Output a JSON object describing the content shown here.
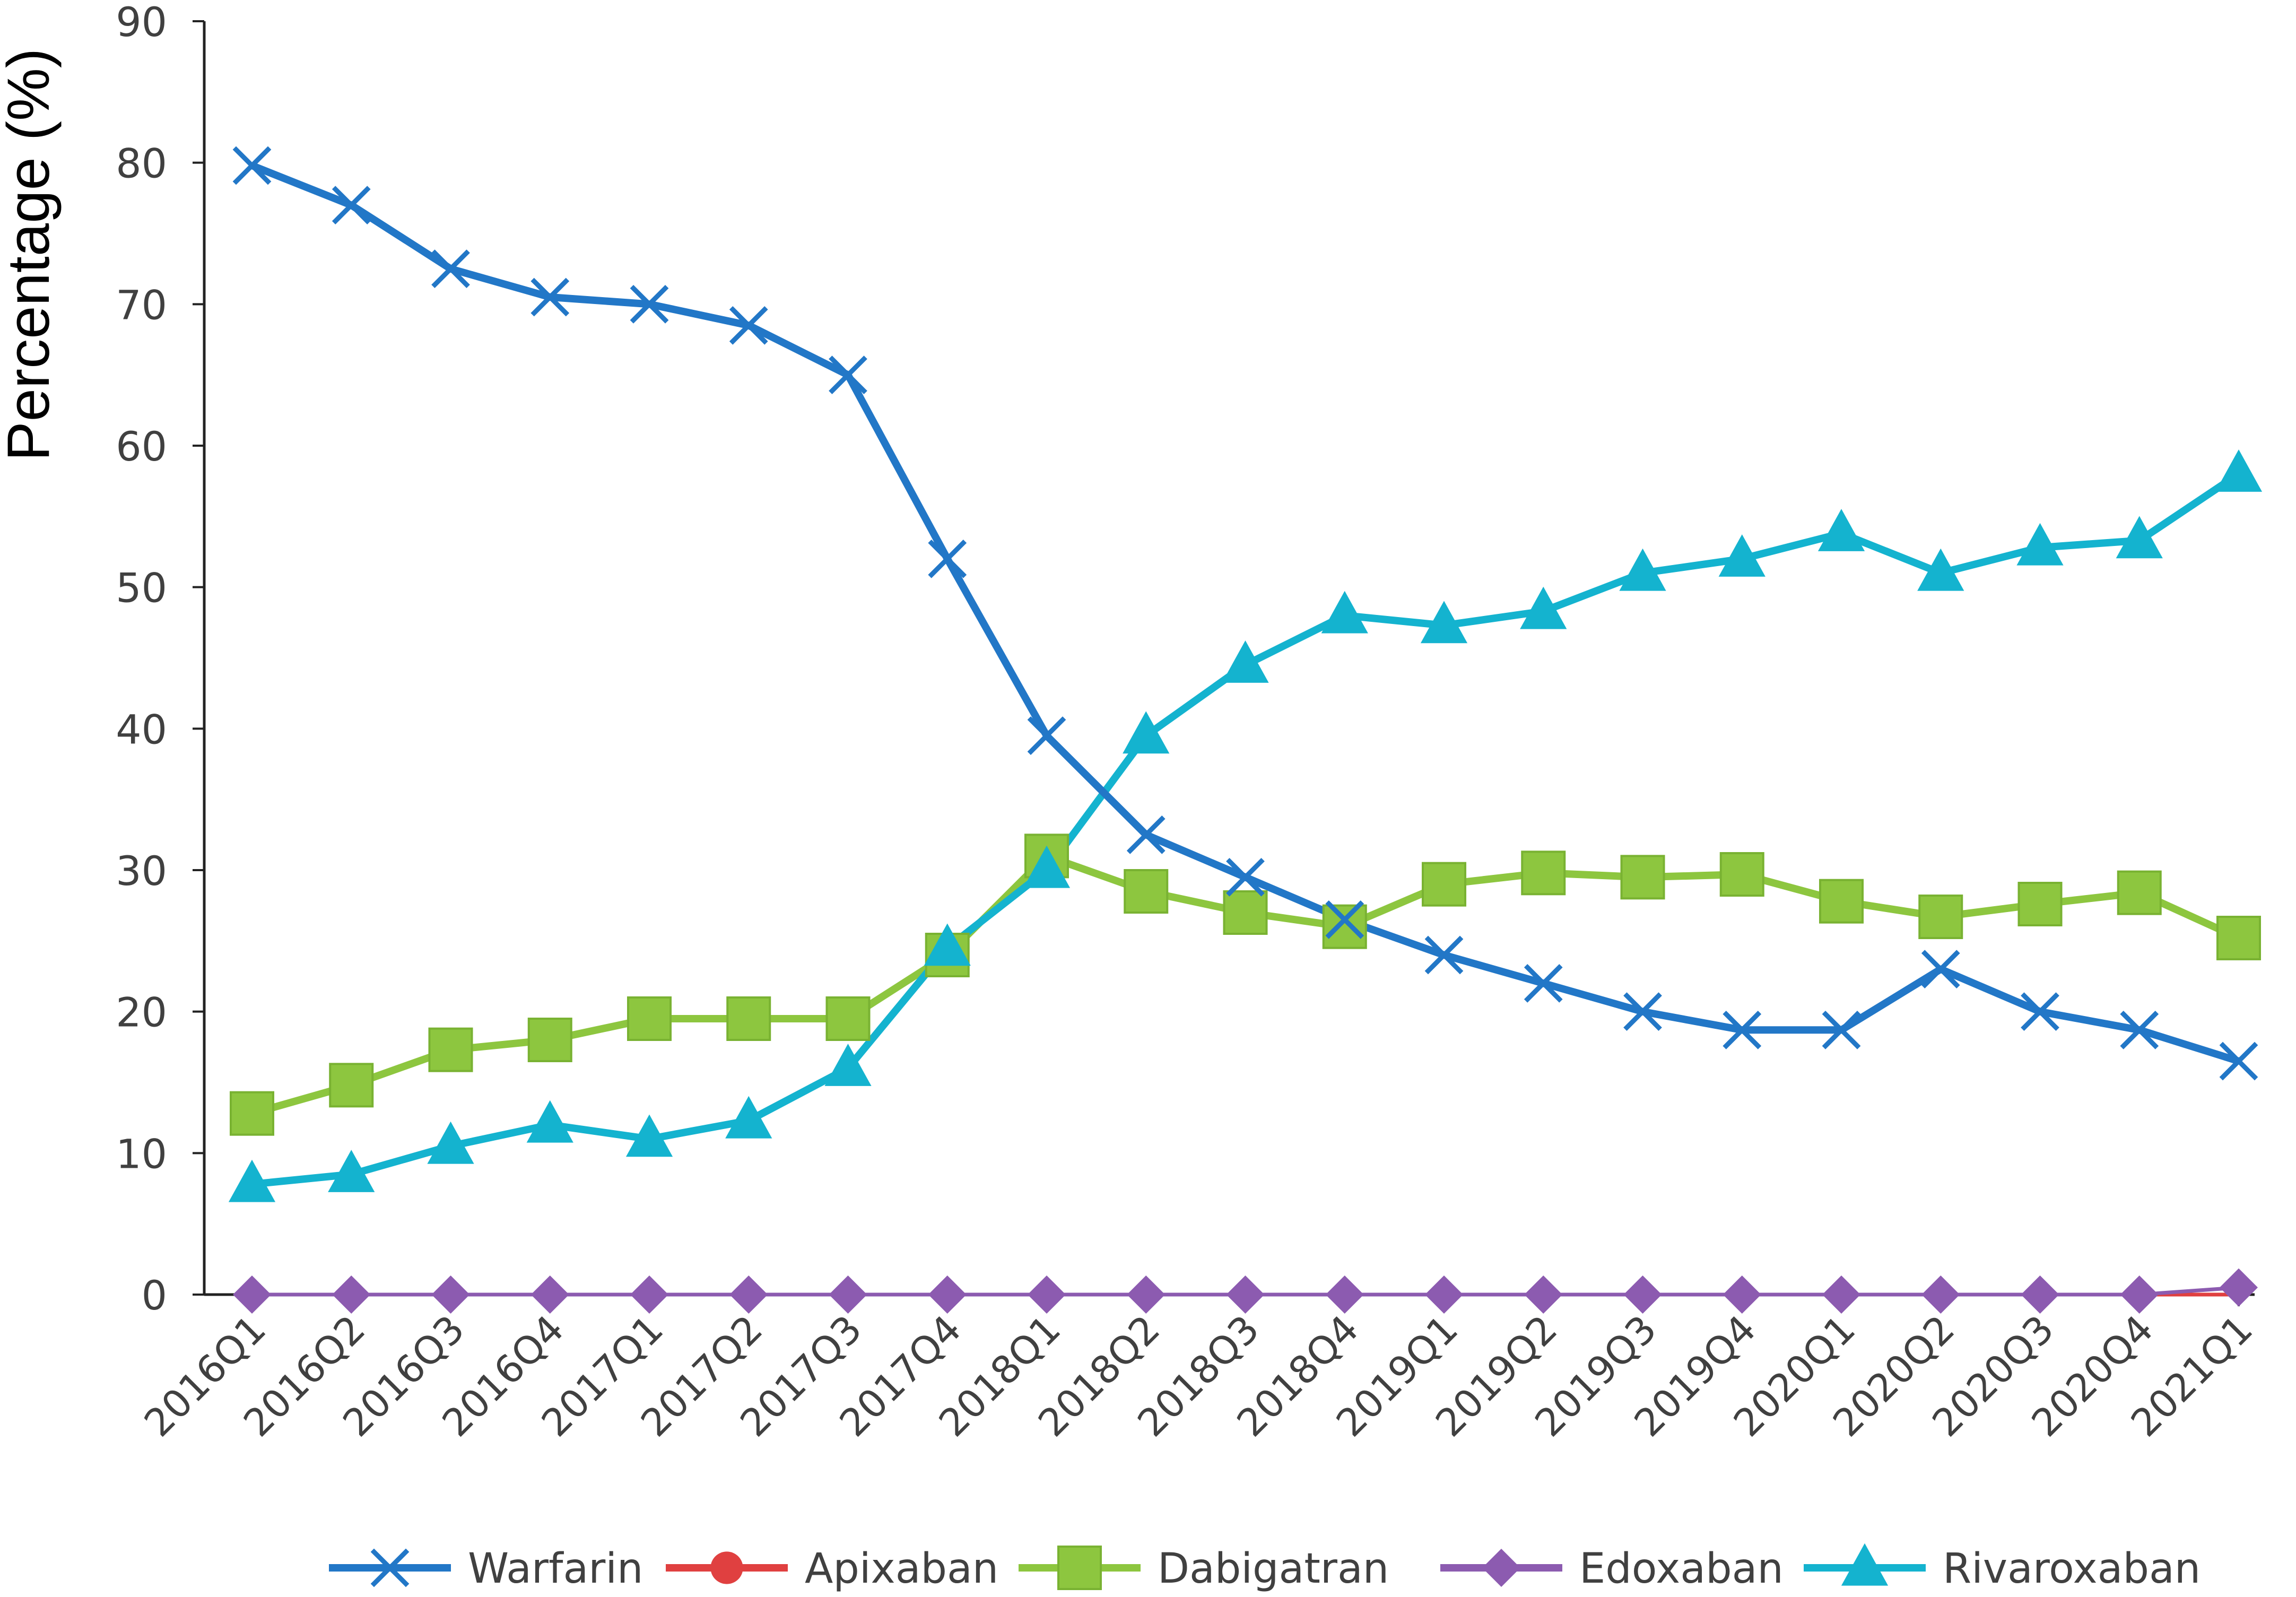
{
  "chart_data": {
    "type": "line",
    "title": "",
    "xlabel": "",
    "ylabel": "Percentage (%)",
    "ylim": [
      0,
      90
    ],
    "yticks": [
      0,
      10,
      20,
      30,
      40,
      50,
      60,
      70,
      80,
      90
    ],
    "grid": false,
    "legend_position": "bottom",
    "categories": [
      "2016Q1",
      "2016Q2",
      "2016Q3",
      "2016Q4",
      "2017Q1",
      "2017Q2",
      "2017Q3",
      "2017Q4",
      "2018Q1",
      "2018Q2",
      "2018Q3",
      "2018Q4",
      "2019Q1",
      "2019Q2",
      "2019Q3",
      "2019Q4",
      "2020Q1",
      "2020Q2",
      "2020Q3",
      "2020Q4",
      "2021Q1"
    ],
    "series": [
      {
        "name": "Warfarin",
        "color": "#2277c7",
        "marker": "x",
        "values": [
          79.8,
          77.0,
          72.5,
          70.5,
          70.0,
          68.5,
          65.0,
          52.0,
          39.5,
          32.5,
          29.5,
          26.5,
          24.0,
          22.0,
          20.0,
          18.7,
          18.7,
          23.0,
          20.0,
          18.7,
          16.5
        ]
      },
      {
        "name": "Apixaban",
        "color": "#e04040",
        "marker": "circle",
        "values": [
          0,
          0,
          0,
          0,
          0,
          0,
          0,
          0,
          0,
          0,
          0,
          0,
          0,
          0,
          0,
          0,
          0,
          0,
          0,
          0,
          0
        ]
      },
      {
        "name": "Dabigatran",
        "color": "#8dc63f",
        "marker": "square",
        "values": [
          12.8,
          14.8,
          17.3,
          18.0,
          19.5,
          19.5,
          19.5,
          24.0,
          31.0,
          28.5,
          27.0,
          26.0,
          29.0,
          29.8,
          29.5,
          29.7,
          27.8,
          26.7,
          27.6,
          28.4,
          25.2
        ]
      },
      {
        "name": "Edoxaban",
        "color": "#8c5bb0",
        "marker": "diamond",
        "values": [
          0,
          0,
          0,
          0,
          0,
          0,
          0,
          0,
          0,
          0,
          0,
          0,
          0,
          0,
          0,
          0,
          0,
          0,
          0,
          0,
          0.5
        ]
      },
      {
        "name": "Rivaroxaban",
        "color": "#14b3cf",
        "marker": "triangle",
        "values": [
          7.8,
          8.5,
          10.5,
          12.0,
          11.0,
          12.3,
          16.0,
          24.5,
          30.0,
          39.5,
          44.5,
          48.0,
          47.3,
          48.3,
          51.0,
          52.0,
          53.8,
          51.0,
          52.8,
          53.3,
          58.0
        ]
      }
    ]
  }
}
